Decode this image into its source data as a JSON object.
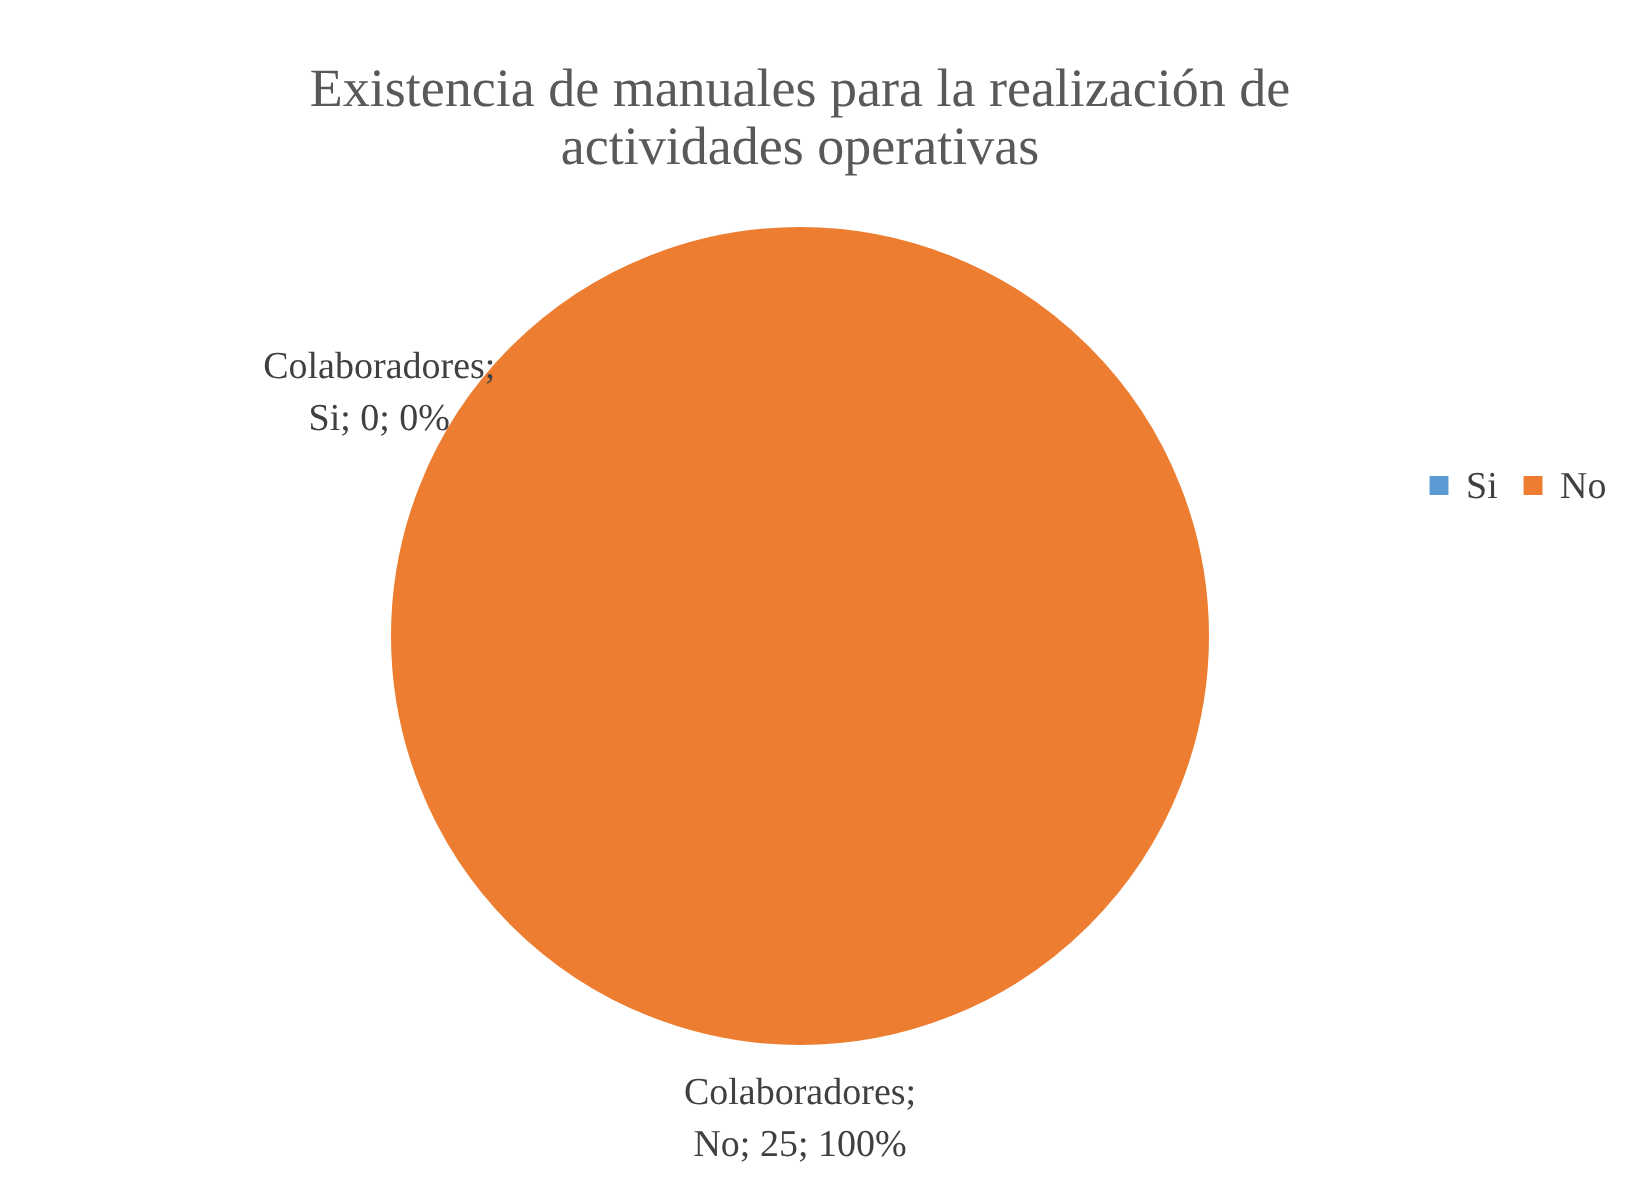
{
  "chart_data": {
    "type": "pie",
    "title": "Existencia de manuales para la realización de actividades operativas",
    "categories": [
      "Si",
      "No"
    ],
    "values": [
      0,
      25
    ],
    "colors": [
      "#5b9bd5",
      "#ed7d31"
    ],
    "value_labels": [
      "Colaboradores; Si; 0; 0%",
      "Colaboradores; No; 25; 100%"
    ],
    "legend": "right"
  }
}
